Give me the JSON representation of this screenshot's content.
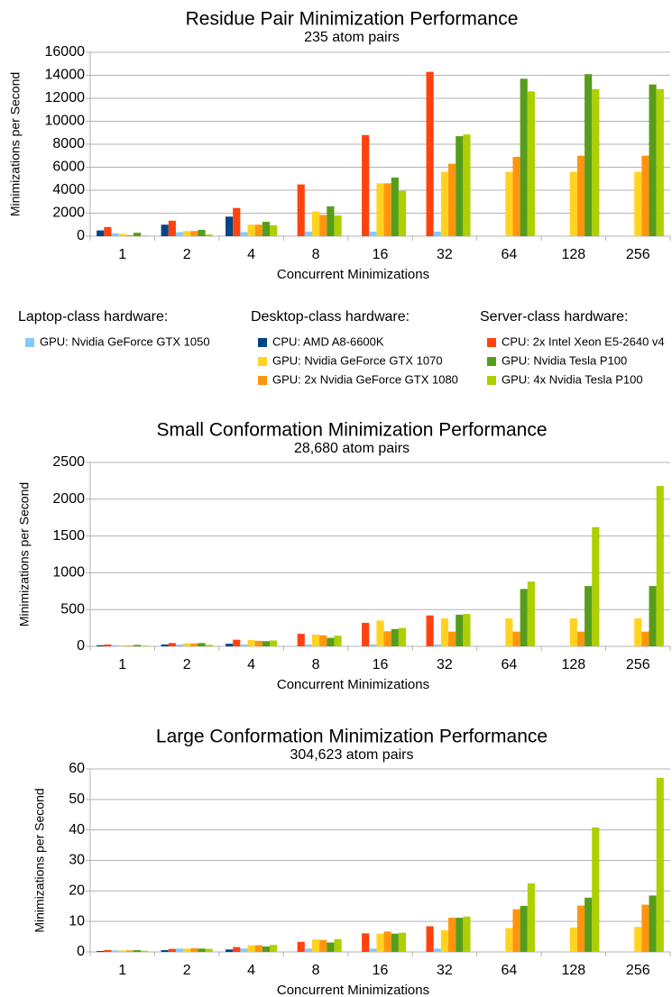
{
  "chart_data": [
    {
      "type": "bar",
      "title": "Residue Pair Minimization Performance",
      "subtitle": "235 atom pairs",
      "x_label": "Concurrent Minimizations",
      "y_label": "Minimizations per Second",
      "categories": [
        "1",
        "2",
        "4",
        "8",
        "16",
        "32",
        "64",
        "128",
        "256"
      ],
      "ylim": [
        0,
        16000
      ],
      "yticks": [
        0,
        2000,
        4000,
        6000,
        8000,
        10000,
        12000,
        14000,
        16000
      ],
      "grid": true,
      "series": [
        {
          "name": "CPU: AMD A8-6600K",
          "color": "#004586",
          "values": [
            500,
            1000,
            1700,
            null,
            null,
            null,
            null,
            null,
            null
          ]
        },
        {
          "name": "CPU: 2x Intel Xeon E5-2640 v4",
          "color": "#ff420e",
          "values": [
            800,
            1350,
            2450,
            4500,
            8800,
            14300,
            null,
            null,
            null
          ]
        },
        {
          "name": "GPU: Nvidia GeForce GTX 1050",
          "color": "#83caff",
          "values": [
            250,
            350,
            350,
            400,
            400,
            400,
            null,
            null,
            null
          ]
        },
        {
          "name": "GPU: Nvidia GeForce GTX 1070",
          "color": "#ffd320",
          "values": [
            200,
            450,
            1000,
            2150,
            4600,
            5600,
            5600,
            5600,
            5600
          ]
        },
        {
          "name": "GPU: 2x Nvidia GeForce GTX 1080",
          "color": "#ff950e",
          "values": [
            100,
            450,
            1000,
            1850,
            4600,
            6300,
            6900,
            7000,
            7000
          ]
        },
        {
          "name": "GPU: Nvidia Tesla P100",
          "color": "#579d1c",
          "values": [
            300,
            550,
            1250,
            2600,
            5100,
            8700,
            13700,
            14100,
            13200
          ]
        },
        {
          "name": "GPU: 4x Nvidia Tesla P100",
          "color": "#aecf00",
          "values": [
            50,
            150,
            950,
            1800,
            3950,
            8850,
            12600,
            12800,
            12800
          ]
        }
      ]
    },
    {
      "type": "bar",
      "title": "Small Conformation Minimization Performance",
      "subtitle": "28,680 atom pairs",
      "x_label": "Concurrent Minimizations",
      "y_label": "Minimizations per Second",
      "categories": [
        "1",
        "2",
        "4",
        "8",
        "16",
        "32",
        "64",
        "128",
        "256"
      ],
      "ylim": [
        0,
        2500
      ],
      "yticks": [
        0,
        500,
        1000,
        1500,
        2000,
        2500
      ],
      "grid": true,
      "series": [
        {
          "values": [
            15,
            25,
            35,
            null,
            null,
            null,
            null,
            null,
            null
          ]
        },
        {
          "values": [
            25,
            45,
            90,
            170,
            320,
            420,
            null,
            null,
            null
          ]
        },
        {
          "values": [
            15,
            25,
            25,
            25,
            25,
            25,
            null,
            null,
            null
          ]
        },
        {
          "values": [
            15,
            40,
            85,
            160,
            350,
            380,
            380,
            380,
            380
          ]
        },
        {
          "values": [
            10,
            40,
            75,
            150,
            205,
            200,
            200,
            200,
            200
          ]
        },
        {
          "values": [
            20,
            45,
            70,
            115,
            235,
            430,
            780,
            820,
            820
          ]
        },
        {
          "values": [
            10,
            20,
            80,
            145,
            250,
            440,
            880,
            1620,
            2180
          ]
        }
      ]
    },
    {
      "type": "bar",
      "title": "Large Conformation Minimization Performance",
      "subtitle": "304,623 atom pairs",
      "x_label": "Concurrent Minimizations",
      "y_label": "Minimizations per Second",
      "categories": [
        "1",
        "2",
        "4",
        "8",
        "16",
        "32",
        "64",
        "128",
        "256"
      ],
      "ylim": [
        0,
        60
      ],
      "yticks": [
        0,
        10,
        20,
        30,
        40,
        50,
        60
      ],
      "grid": true,
      "series": [
        {
          "values": [
            0.3,
            0.6,
            0.8,
            null,
            null,
            null,
            null,
            null,
            null
          ]
        },
        {
          "values": [
            0.6,
            1.0,
            1.6,
            3.3,
            6.1,
            8.4,
            null,
            null,
            null
          ]
        },
        {
          "values": [
            0.5,
            1.1,
            1.1,
            1.1,
            1.1,
            1.1,
            null,
            null,
            null
          ]
        },
        {
          "values": [
            0.5,
            1.1,
            2.2,
            4.1,
            6.0,
            7.1,
            7.8,
            8.0,
            8.2
          ]
        },
        {
          "values": [
            0.5,
            1.2,
            2.2,
            3.9,
            6.7,
            11.2,
            14.0,
            15.2,
            15.5
          ]
        },
        {
          "values": [
            0.6,
            1.1,
            1.8,
            3.1,
            6.0,
            11.2,
            15.1,
            17.8,
            18.5
          ]
        },
        {
          "values": [
            0.4,
            1.0,
            2.3,
            4.2,
            6.3,
            11.6,
            22.5,
            40.8,
            57.1
          ]
        }
      ]
    }
  ],
  "legend": {
    "groups": [
      {
        "title": "Laptop-class hardware:",
        "series": [
          2
        ]
      },
      {
        "title": "Desktop-class hardware:",
        "series": [
          0,
          3,
          4
        ]
      },
      {
        "title": "Server-class hardware:",
        "series": [
          1,
          5,
          6
        ]
      }
    ]
  }
}
